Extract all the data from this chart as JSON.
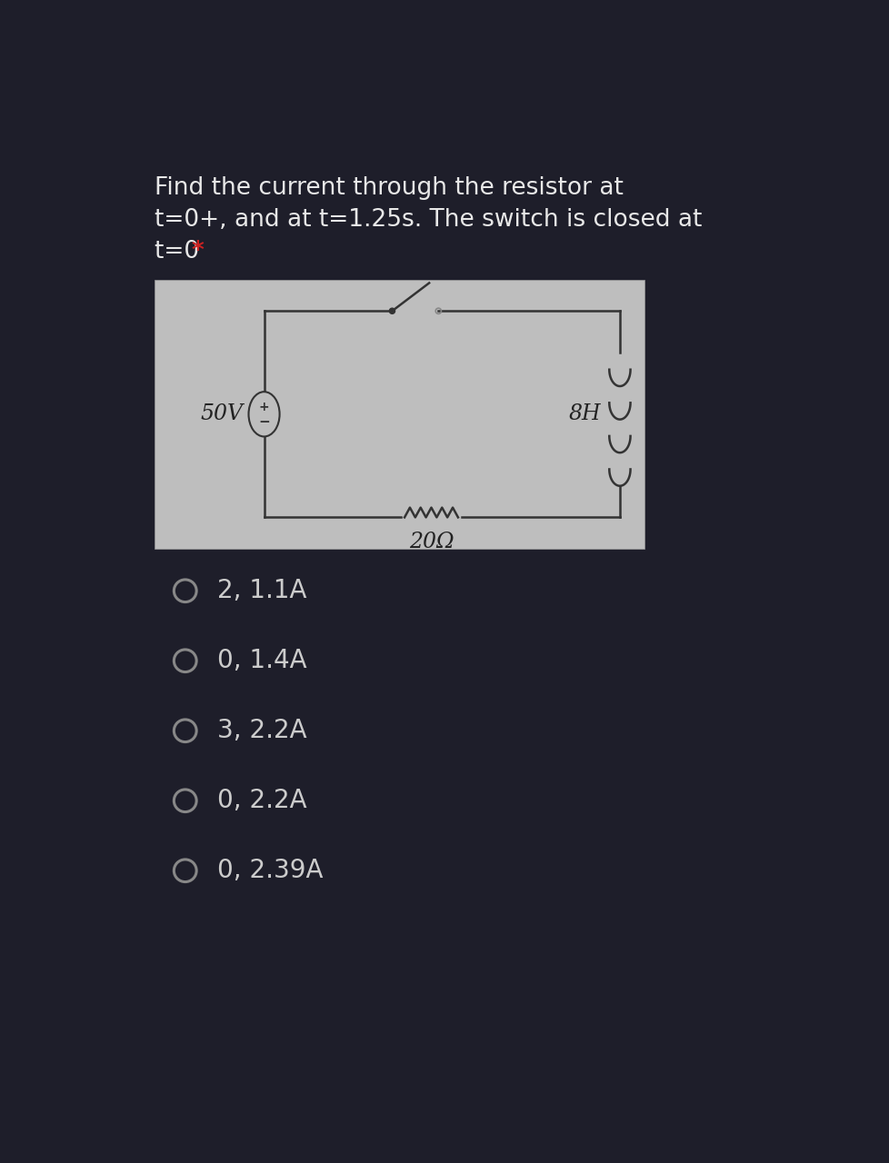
{
  "background_color": "#1e1e2a",
  "circuit_bg": "#bebebe",
  "title_color": "#e8e8e8",
  "star_color": "#cc2222",
  "wire_color": "#333333",
  "label_color": "#222222",
  "option_color": "#cccccc",
  "option_ring_color": "#888888",
  "options": [
    "2, 1.1A",
    "0, 1.4A",
    "3, 2.2A",
    "0, 2.2A",
    "0, 2.39A"
  ],
  "circuit_label_50V": "50V",
  "circuit_label_8H": "8H",
  "circuit_label_20ohm": "20Ω",
  "title_line1": "Find the current through the resistor at",
  "title_line2": "t=0+, and at t=1.25s. The switch is closed at",
  "title_line3_main": "t=0 ",
  "title_line3_star": "*",
  "font_size_title": 19,
  "font_size_options": 20,
  "font_size_circuit_label": 17,
  "font_size_circuit_component": 18
}
